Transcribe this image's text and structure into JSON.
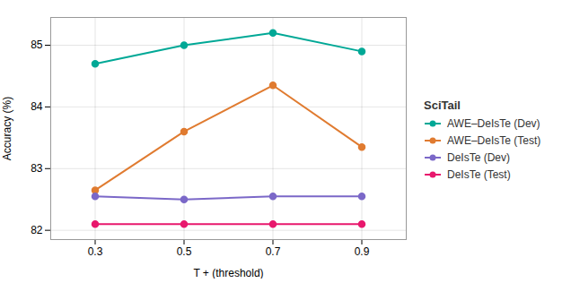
{
  "chart_data": {
    "type": "line",
    "title": "SciTail",
    "xlabel": "T + (threshold)",
    "ylabel": "Accuracy (%)",
    "x": [
      0.3,
      0.5,
      0.7,
      0.9
    ],
    "series": [
      {
        "name": "AWE–DeIsTe (Dev)",
        "color": "#00A896",
        "values": [
          84.7,
          85.0,
          85.2,
          84.9
        ]
      },
      {
        "name": "AWE–DeIsTe (Test)",
        "color": "#E07B30",
        "values": [
          82.65,
          83.6,
          84.35,
          83.35
        ]
      },
      {
        "name": "DeIsTe (Dev)",
        "color": "#7B68C8",
        "values": [
          82.55,
          82.5,
          82.55,
          82.55
        ]
      },
      {
        "name": "DeIsTe (Test)",
        "color": "#E8186D",
        "values": [
          82.1,
          82.1,
          82.1,
          82.1
        ]
      }
    ],
    "xlim": [
      0.2,
      1.0
    ],
    "xticks": [
      0.3,
      0.5,
      0.7,
      0.9
    ],
    "ylim": [
      81.85,
      85.45
    ],
    "yticks": [
      82,
      83,
      84,
      85
    ],
    "grid": true,
    "legend": "right",
    "marker": "circle"
  }
}
